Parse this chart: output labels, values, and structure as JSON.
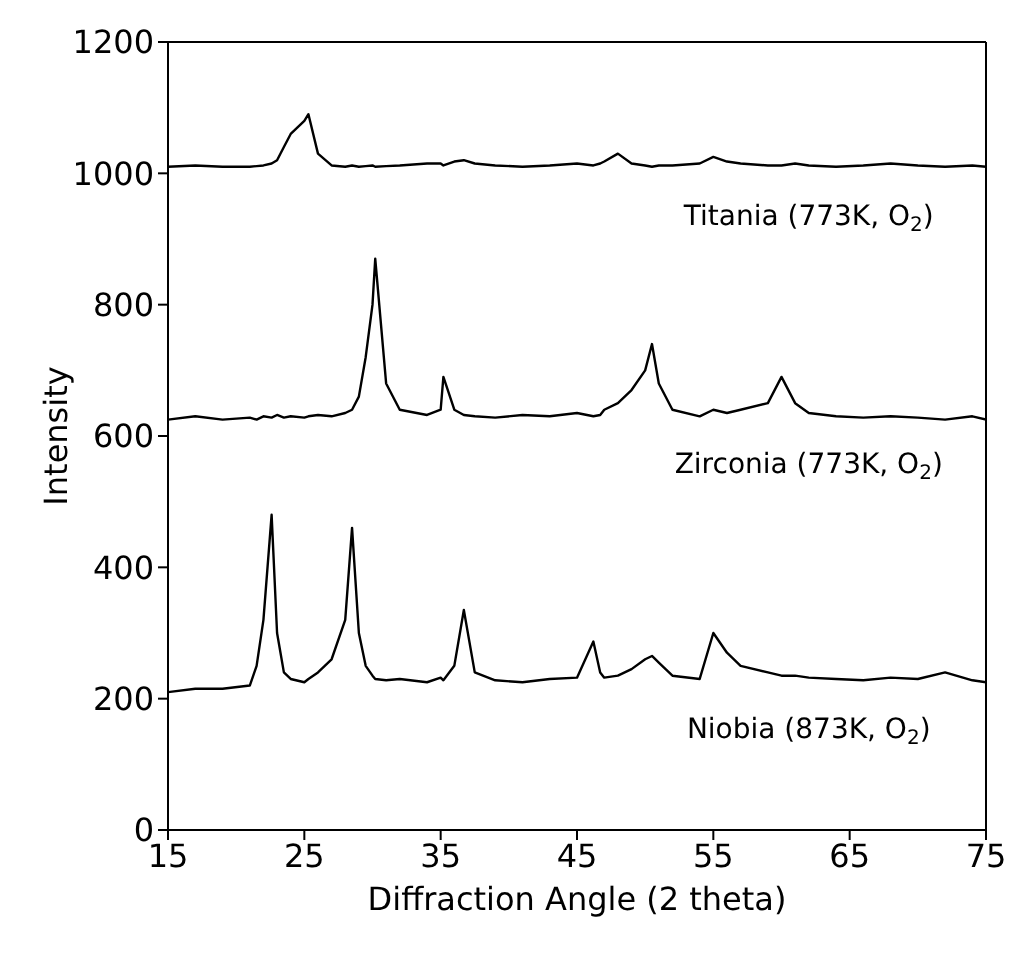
{
  "chart_data": {
    "type": "line",
    "xlabel": "Diffraction Angle (2 theta)",
    "ylabel": "Intensity",
    "x": [
      15,
      17,
      19,
      21,
      21.5,
      22,
      22.6,
      23,
      23.5,
      24,
      25,
      25.3,
      26,
      27,
      28,
      28.5,
      29,
      29.5,
      30,
      30.2,
      31,
      32,
      34,
      35,
      35.2,
      36,
      36.7,
      37.5,
      39,
      41,
      43,
      45,
      46.2,
      46.7,
      47,
      48,
      49,
      50,
      50.5,
      51,
      52,
      54,
      55,
      56,
      57,
      59,
      60,
      61,
      62,
      64,
      66,
      68,
      70,
      72,
      74,
      75
    ],
    "series": [
      {
        "name": "Titania (773K, O$_{2}$)",
        "color": "#000000",
        "values": [
          1010,
          1012,
          1010,
          1010,
          1011,
          1012,
          1015,
          1020,
          1040,
          1060,
          1080,
          1090,
          1030,
          1012,
          1010,
          1012,
          1010,
          1011,
          1012,
          1010,
          1011,
          1012,
          1015,
          1015,
          1012,
          1018,
          1020,
          1015,
          1012,
          1010,
          1012,
          1015,
          1012,
          1015,
          1018,
          1030,
          1015,
          1012,
          1010,
          1012,
          1012,
          1015,
          1025,
          1018,
          1015,
          1012,
          1012,
          1015,
          1012,
          1010,
          1012,
          1015,
          1012,
          1010,
          1012,
          1010
        ]
      },
      {
        "name": "Zirconia (773K, O$_{2}$)",
        "color": "#000000",
        "values": [
          625,
          630,
          625,
          628,
          625,
          630,
          628,
          632,
          628,
          630,
          628,
          630,
          632,
          630,
          635,
          640,
          660,
          720,
          800,
          870,
          680,
          640,
          632,
          640,
          690,
          640,
          632,
          630,
          628,
          632,
          630,
          635,
          630,
          632,
          640,
          650,
          670,
          700,
          740,
          680,
          640,
          630,
          640,
          635,
          640,
          650,
          690,
          650,
          635,
          630,
          628,
          630,
          628,
          625,
          630,
          625
        ]
      },
      {
        "name": "Niobia (873K, O$_{2}$)",
        "color": "#000000",
        "values": [
          210,
          215,
          215,
          220,
          250,
          320,
          480,
          300,
          240,
          230,
          225,
          230,
          240,
          260,
          320,
          460,
          300,
          250,
          235,
          230,
          228,
          230,
          225,
          232,
          228,
          250,
          335,
          240,
          228,
          225,
          230,
          232,
          287,
          240,
          232,
          235,
          245,
          260,
          265,
          255,
          235,
          230,
          300,
          270,
          250,
          240,
          235,
          235,
          232,
          230,
          228,
          232,
          230,
          240,
          228,
          225
        ]
      }
    ],
    "xlim": [
      15,
      75
    ],
    "xticks": [
      15,
      25,
      35,
      45,
      55,
      65,
      75
    ],
    "ylim": [
      0,
      1200
    ],
    "yticks": [
      0,
      200,
      400,
      600,
      800,
      1000,
      1200
    ],
    "grid": false,
    "legend": false,
    "marker": "none",
    "line_style": "solid"
  }
}
